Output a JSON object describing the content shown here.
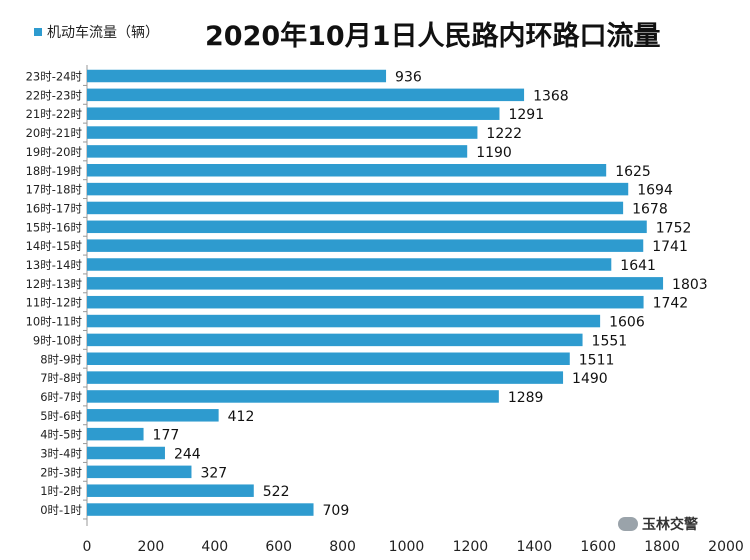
{
  "chart_data": {
    "type": "bar",
    "orientation": "horizontal",
    "title": "2020年10月1日人民路内环路口流量",
    "legend": {
      "label": "机动车流量（辆）",
      "placement": "top-left"
    },
    "categories": [
      "0时-1时",
      "1时-2时",
      "2时-3时",
      "3时-4时",
      "4时-5时",
      "5时-6时",
      "6时-7时",
      "7时-8时",
      "8时-9时",
      "9时-10时",
      "10时-11时",
      "11时-12时",
      "12时-13时",
      "13时-14时",
      "14时-15时",
      "15时-16时",
      "16时-17时",
      "17时-18时",
      "18时-19时",
      "19时-20时",
      "20时-21时",
      "21时-22时",
      "22时-23时",
      "23时-24时"
    ],
    "series": [
      {
        "name": "机动车流量（辆）",
        "values": [
          709,
          522,
          327,
          244,
          177,
          412,
          1289,
          1490,
          1511,
          1551,
          1606,
          1742,
          1803,
          1641,
          1741,
          1752,
          1678,
          1694,
          1625,
          1190,
          1222,
          1291,
          1368,
          936
        ]
      }
    ],
    "xlim": [
      0,
      2000
    ],
    "xticks": [
      0,
      200,
      400,
      600,
      800,
      1000,
      1200,
      1400,
      1600,
      1800,
      2000
    ],
    "bar_color": "#2e9bcf",
    "grid": false
  },
  "watermark": {
    "text": "玉林交警"
  }
}
